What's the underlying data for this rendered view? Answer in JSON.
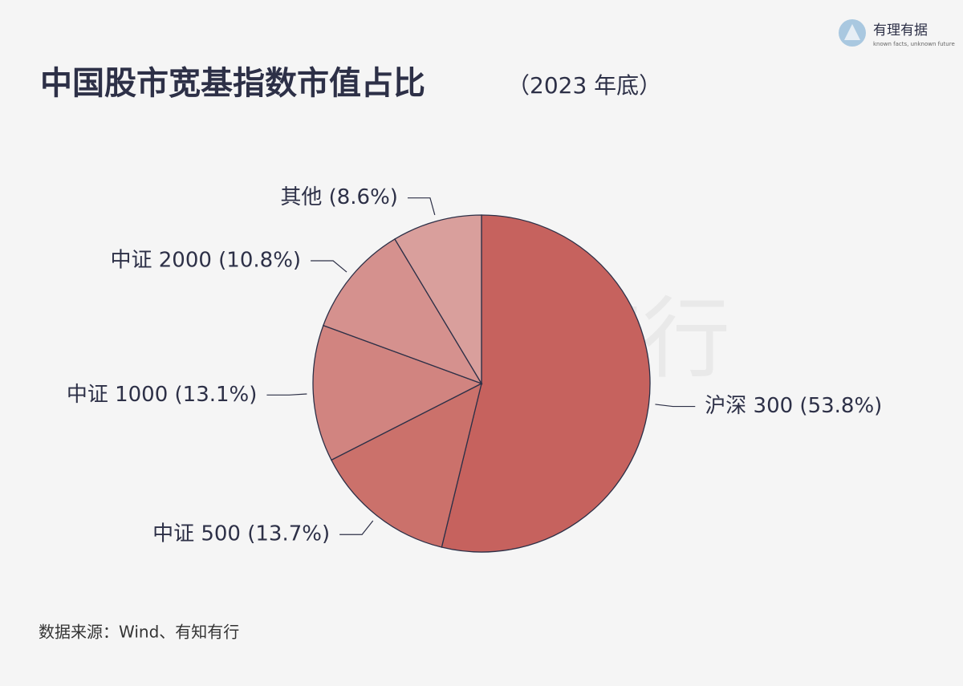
{
  "chart_data": {
    "type": "pie",
    "title": "中国股市宽基指数市值占比",
    "subtitle": "（2023 年底）",
    "categories": [
      "沪深 300 (53.8%)",
      "中证 500 (13.7%)",
      "中证 1000 (13.1%)",
      "中证 2000 (10.8%)",
      "其他 (8.6%)"
    ],
    "values": [
      53.8,
      13.7,
      13.1,
      10.8,
      8.6
    ],
    "colors": [
      "#c6625e",
      "#cb716b",
      "#d18480",
      "#d5918e",
      "#d99f9c"
    ],
    "source": "数据来源：Wind、有知有行",
    "watermark": "有知有行"
  },
  "logo": {
    "name": "有理有据",
    "tagline": "known facts, unknown future"
  }
}
